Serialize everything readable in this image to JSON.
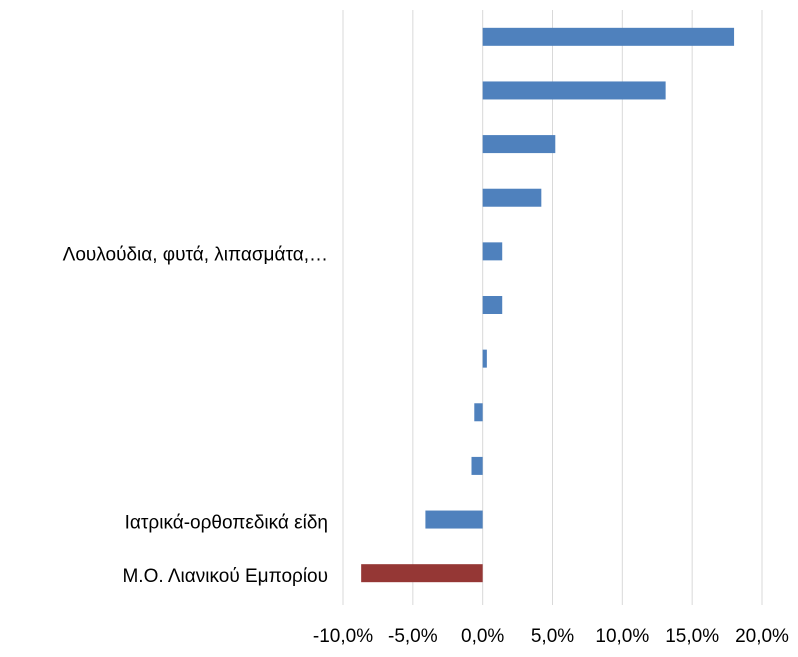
{
  "chart_data": {
    "type": "hbar",
    "categories": [
      null,
      null,
      null,
      null,
      "Λουλούδια, φυτά, λιπασμάτα,…",
      null,
      null,
      null,
      null,
      "Ιατρικά-ορθοπεδικά είδη",
      "Μ.Ο. Λιανικού Εμπορίου"
    ],
    "values": [
      18.0,
      13.1,
      5.2,
      4.2,
      1.4,
      1.4,
      0.3,
      -0.6,
      -0.8,
      -4.1,
      -8.7
    ],
    "colors": [
      "#4f81bd",
      "#4f81bd",
      "#4f81bd",
      "#4f81bd",
      "#4f81bd",
      "#4f81bd",
      "#4f81bd",
      "#4f81bd",
      "#4f81bd",
      "#4f81bd",
      "#953735"
    ],
    "xlim": [
      -10,
      20
    ],
    "xticks": [
      {
        "value": -10,
        "label": "-10,0%"
      },
      {
        "value": -5,
        "label": "-5,0%"
      },
      {
        "value": 0,
        "label": "0,0%"
      },
      {
        "value": 5,
        "label": "5,0%"
      },
      {
        "value": 10,
        "label": "10,0%"
      },
      {
        "value": 15,
        "label": "15,0%"
      },
      {
        "value": 20,
        "label": "20,0%"
      }
    ],
    "grid": true
  }
}
